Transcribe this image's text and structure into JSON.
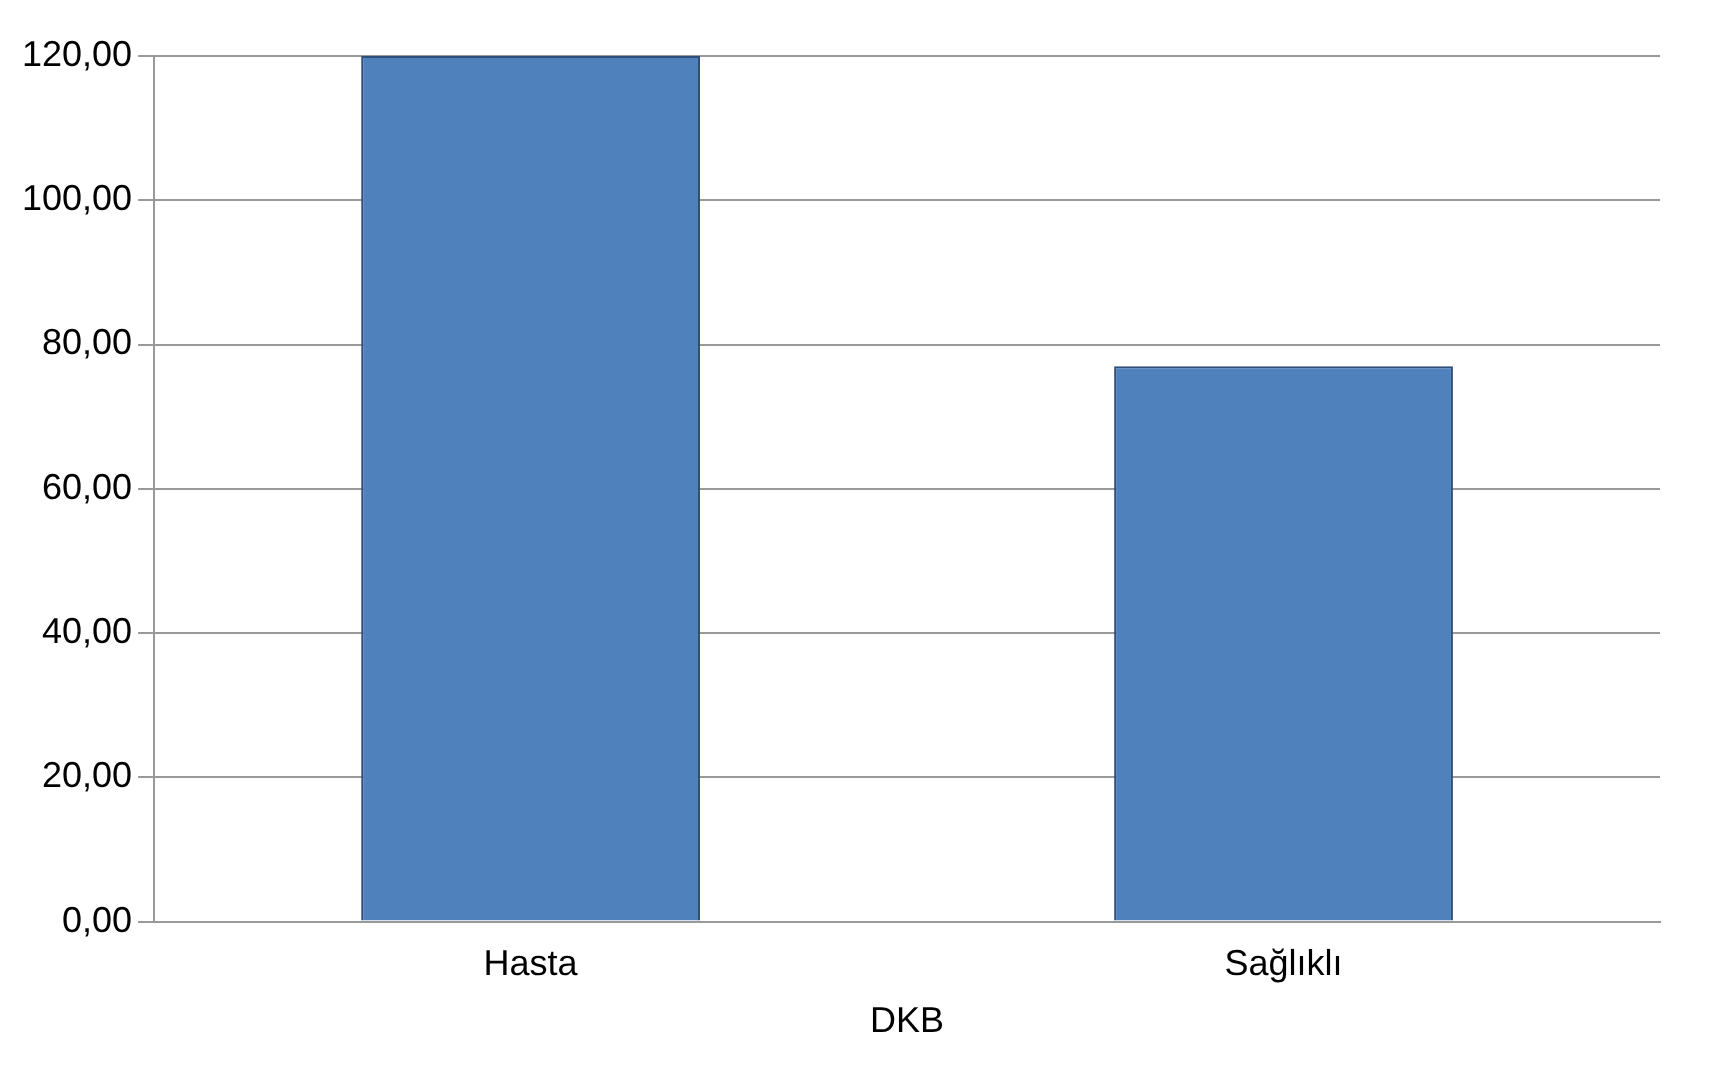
{
  "chart_data": {
    "type": "bar",
    "categories": [
      "Hasta",
      "Sağlıklı"
    ],
    "xlabel": "DKB",
    "values": [
      120,
      77
    ],
    "color": "#4f81bd",
    "ylim": [
      0,
      120
    ],
    "yticks": [
      {
        "value": 0,
        "label": "0,00"
      },
      {
        "value": 20,
        "label": "20,00"
      },
      {
        "value": 40,
        "label": "40,00"
      },
      {
        "value": 60,
        "label": "60,00"
      },
      {
        "value": 80,
        "label": "80,00"
      },
      {
        "value": 100,
        "label": "100,00"
      },
      {
        "value": 120,
        "label": "120,00"
      }
    ],
    "grid": "y",
    "legend": false
  }
}
